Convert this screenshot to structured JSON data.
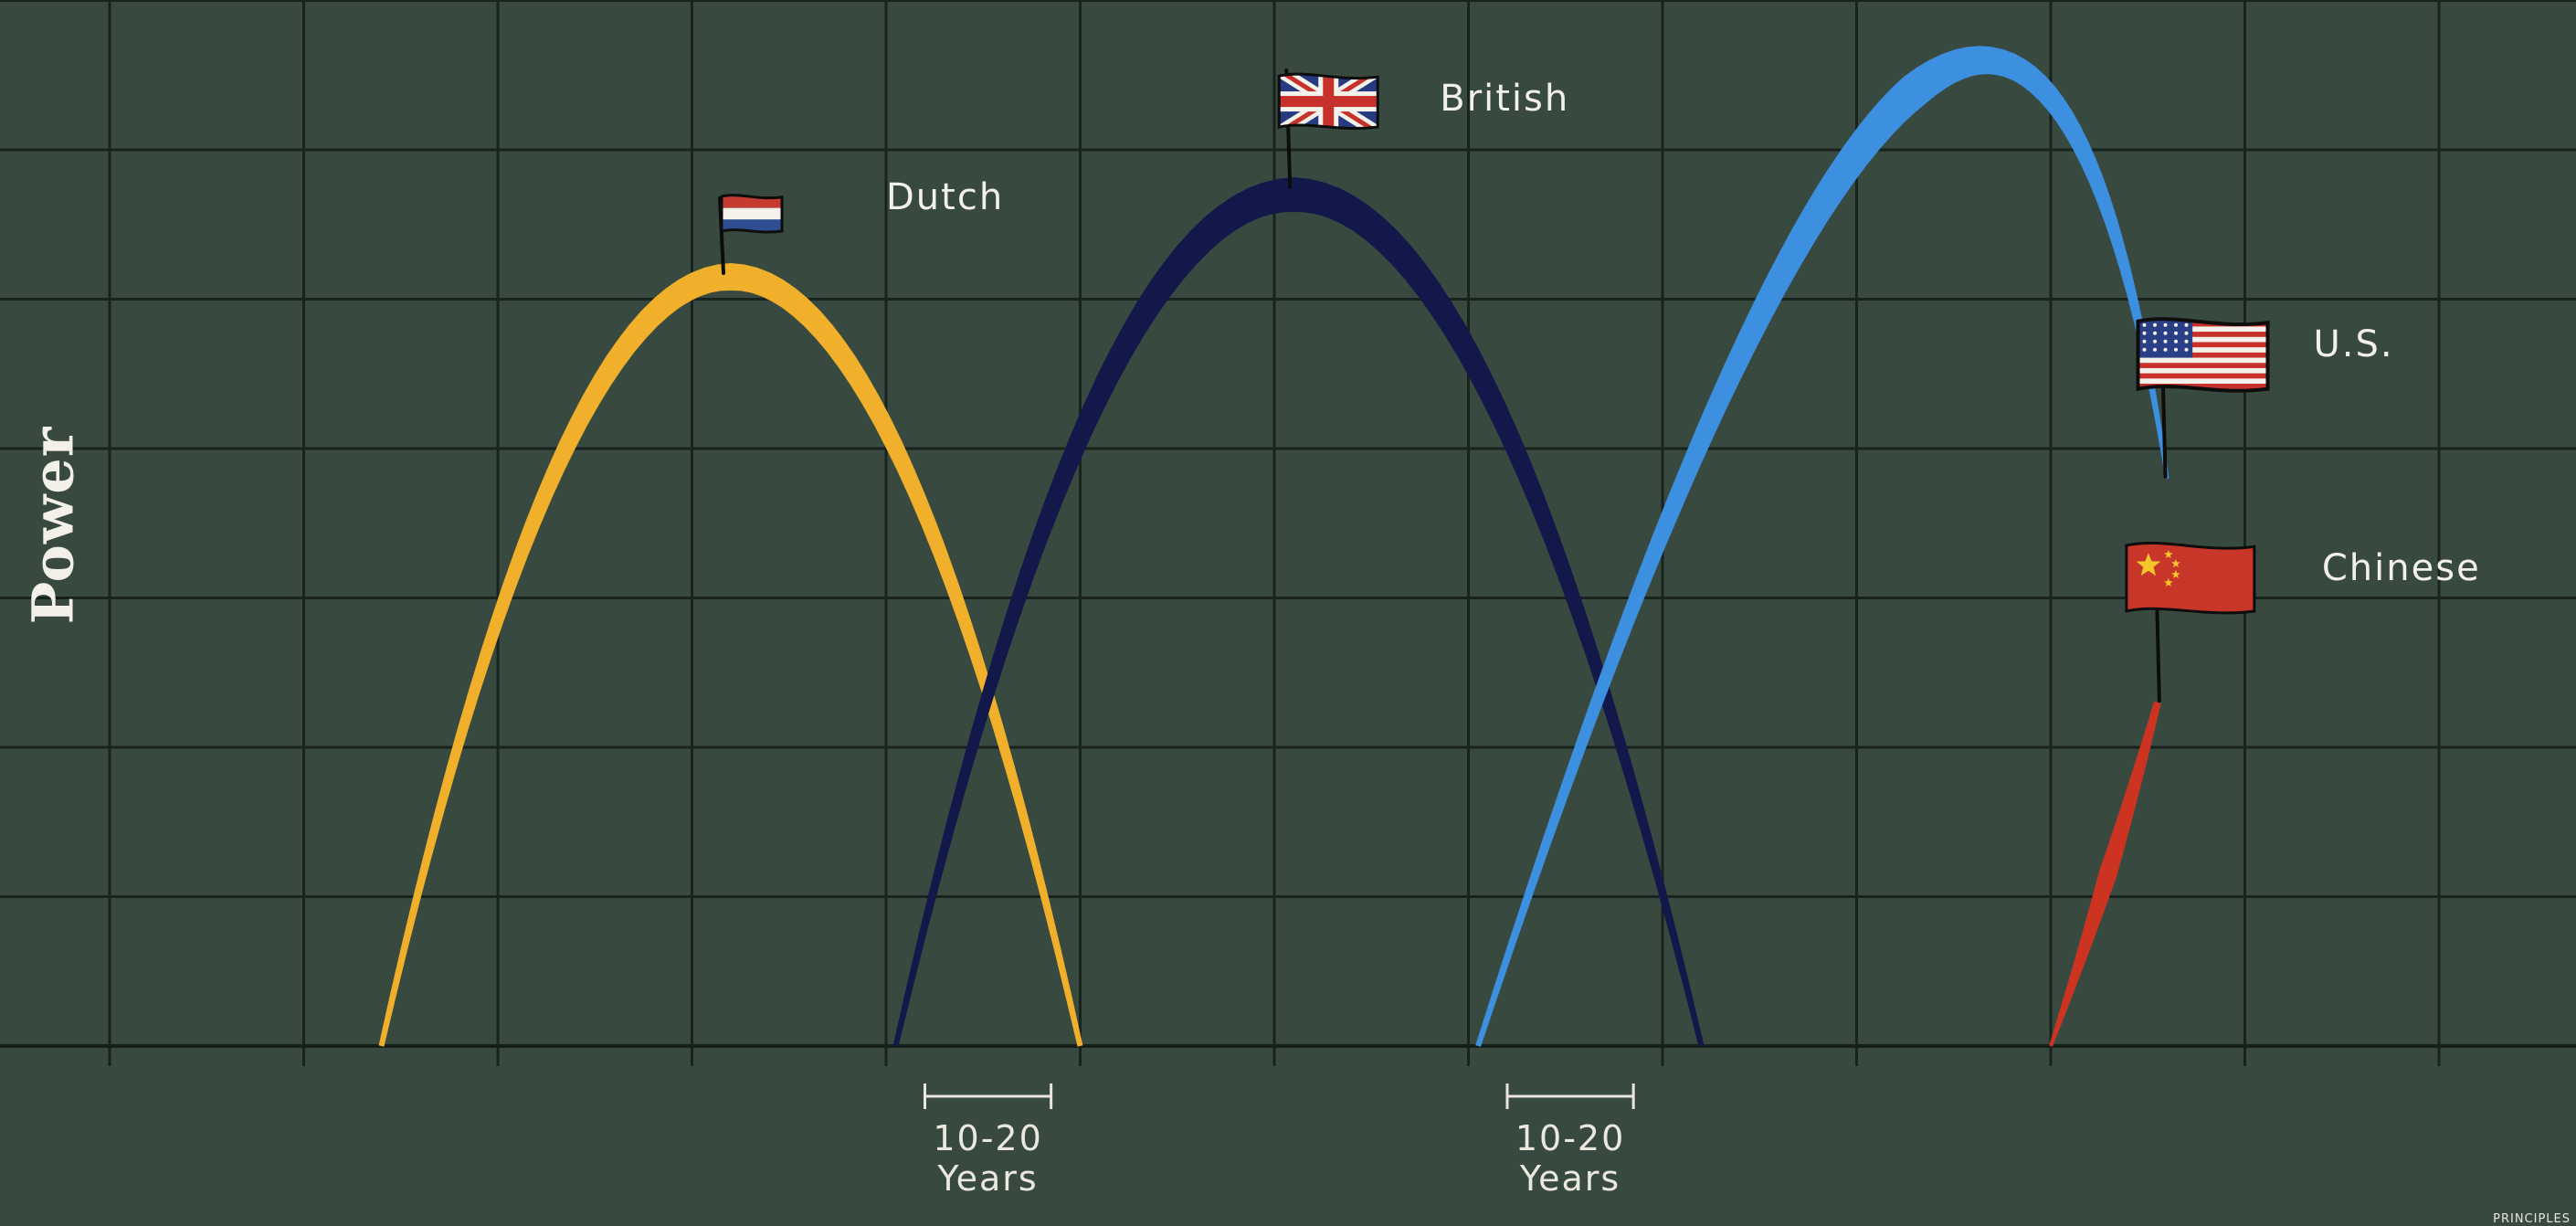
{
  "chart_data": {
    "type": "line",
    "title": "",
    "xlabel": "",
    "ylabel": "Power",
    "xlim": [
      0,
      13.3
    ],
    "ylim": [
      0,
      7
    ],
    "grid": true,
    "series": [
      {
        "name": "Dutch",
        "color": "#f0b02c",
        "flag_icon": "netherlands-flag-icon",
        "x": [
          1.4,
          3.2,
          5.0
        ],
        "y": [
          0,
          5.15,
          0
        ],
        "peak": [
          3.2,
          5.15
        ]
      },
      {
        "name": "British",
        "color": "#12194a",
        "flag_icon": "uk-flag-icon",
        "x": [
          4.05,
          6.1,
          8.2
        ],
        "y": [
          0,
          5.7,
          0
        ],
        "peak": [
          6.1,
          5.7
        ]
      },
      {
        "name": "U.S.",
        "color": "#3d8fdf",
        "flag_icon": "usa-flag-icon",
        "x": [
          7.05,
          9.3,
          10.6
        ],
        "y": [
          0,
          6.4,
          3.8
        ],
        "peak": [
          9.3,
          6.4
        ]
      },
      {
        "name": "Chinese",
        "color": "#cc3321",
        "flag_icon": "china-flag-icon",
        "x": [
          10.0,
          10.55
        ],
        "y": [
          0,
          2.3
        ]
      }
    ],
    "annotations": [
      {
        "id": "gap1",
        "x_start": 4.2,
        "x_end": 4.85,
        "line1": "10-20",
        "line2": "Years"
      },
      {
        "id": "gap2",
        "x_start": 7.2,
        "x_end": 7.85,
        "line1": "10-20",
        "line2": "Years"
      }
    ]
  },
  "brand": "PRINCIPLES"
}
